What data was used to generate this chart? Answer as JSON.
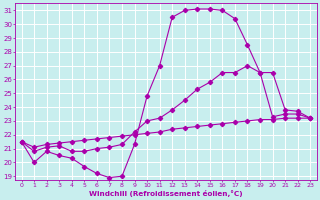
{
  "xlabel": "Windchill (Refroidissement éolien,°C)",
  "bg_color": "#c8eeee",
  "line_color": "#aa00aa",
  "grid_color": "#ffffff",
  "xlim": [
    -0.5,
    23.5
  ],
  "ylim": [
    18.7,
    31.5
  ],
  "yticks": [
    19,
    20,
    21,
    22,
    23,
    24,
    25,
    26,
    27,
    28,
    29,
    30,
    31
  ],
  "xticks": [
    0,
    1,
    2,
    3,
    4,
    5,
    6,
    7,
    8,
    9,
    10,
    11,
    12,
    13,
    14,
    15,
    16,
    17,
    18,
    19,
    20,
    21,
    22,
    23
  ],
  "series1_x": [
    0,
    1,
    2,
    3,
    4,
    5,
    6,
    7,
    8,
    9,
    10,
    11,
    12,
    13,
    14,
    15,
    16,
    17,
    18,
    19,
    20,
    21,
    22,
    23
  ],
  "series1_y": [
    21.5,
    20.0,
    20.8,
    20.5,
    20.3,
    19.7,
    19.2,
    18.9,
    19.0,
    21.3,
    24.8,
    27.0,
    30.5,
    31.0,
    31.1,
    31.1,
    31.0,
    30.4,
    28.5,
    26.5,
    26.5,
    23.8,
    23.7,
    23.2
  ],
  "series2_x": [
    0,
    1,
    2,
    3,
    4,
    5,
    6,
    7,
    8,
    9,
    10,
    11,
    12,
    13,
    14,
    15,
    16,
    17,
    18,
    19,
    20,
    21,
    22,
    23
  ],
  "series2_y": [
    21.5,
    20.8,
    21.1,
    21.2,
    20.8,
    20.8,
    21.0,
    21.1,
    21.3,
    22.2,
    23.0,
    23.2,
    23.8,
    24.5,
    25.3,
    25.8,
    26.5,
    26.5,
    27.0,
    26.5,
    23.3,
    23.5,
    23.5,
    23.2
  ],
  "series3_x": [
    0,
    1,
    2,
    3,
    4,
    5,
    6,
    7,
    8,
    9,
    10,
    11,
    12,
    13,
    14,
    15,
    16,
    17,
    18,
    19,
    20,
    21,
    22,
    23
  ],
  "series3_y": [
    21.5,
    21.1,
    21.3,
    21.4,
    21.5,
    21.6,
    21.7,
    21.8,
    21.9,
    22.0,
    22.1,
    22.2,
    22.4,
    22.5,
    22.6,
    22.7,
    22.8,
    22.9,
    23.0,
    23.1,
    23.1,
    23.2,
    23.2,
    23.2
  ],
  "marker_size": 2.2,
  "line_width": 0.8
}
